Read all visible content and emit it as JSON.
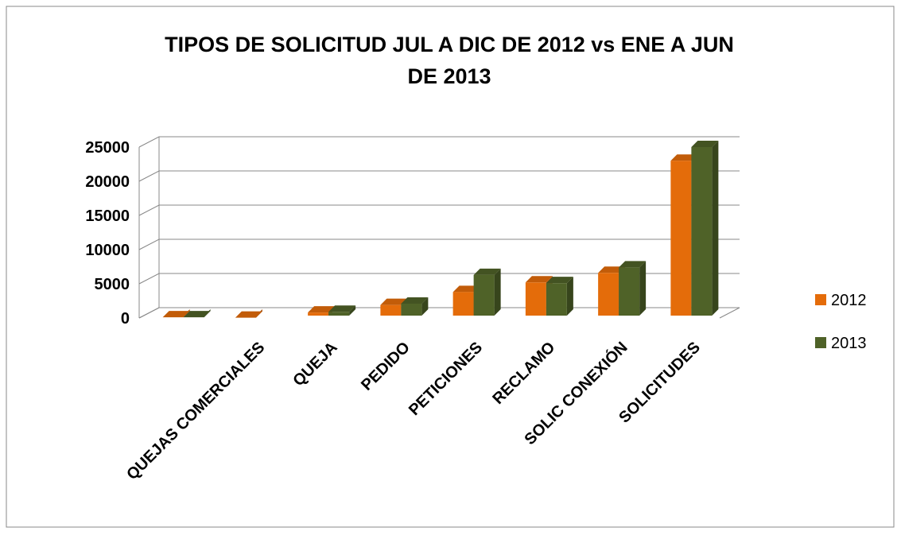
{
  "chart_data": {
    "type": "bar3d",
    "title": "TIPOS DE SOLICITUD  JUL A DIC  DE 2012 vs ENE  A JUN DE 2013",
    "categories": [
      null,
      "QUEJAS COMERCIALES",
      "QUEJA",
      "PEDIDO",
      "PETICIONES",
      "RECLAMO",
      "SOLIC CONEXIÓN",
      "SOLICITUDES"
    ],
    "series": [
      {
        "name": "2012",
        "color": "#e46c0a",
        "values": [
          100,
          50,
          800,
          1900,
          3800,
          5200,
          6600,
          23000
        ]
      },
      {
        "name": "2013",
        "color": "#4f6228",
        "values": [
          100,
          null,
          900,
          2100,
          6300,
          5100,
          7400,
          25000
        ]
      }
    ],
    "ylim": [
      0,
      25000
    ],
    "yticks": [
      0,
      5000,
      10000,
      15000,
      20000,
      25000
    ],
    "grid": true,
    "legend": "right"
  }
}
